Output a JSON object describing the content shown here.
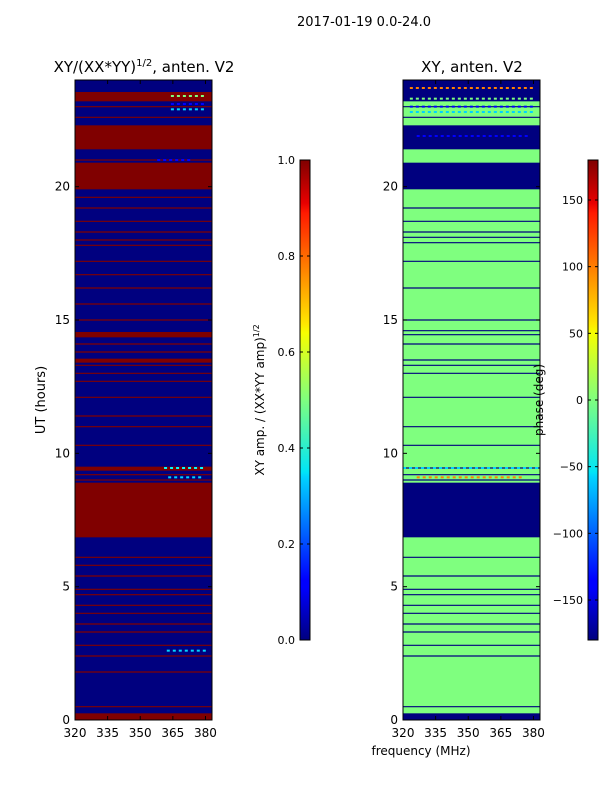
{
  "suptitle": "2017-01-19 0.0-24.0",
  "colors": {
    "red": "#800000",
    "navy": "#00007f",
    "green": "#7fff7f",
    "axis": "#000000"
  },
  "chart_data": [
    {
      "type": "heatmap",
      "title": "XY/(XX*YY)",
      "title_sup": "1/2",
      "title_suffix": ", anten. V2",
      "xlabel": "",
      "ylabel": "UT (hours)",
      "xlim": [
        320,
        383
      ],
      "ylim": [
        0,
        24
      ],
      "xticks": [
        320,
        335,
        350,
        365,
        380
      ],
      "yticks": [
        0,
        5,
        10,
        15,
        20
      ],
      "background_value": 0,
      "colormap": "jet",
      "bands": [
        {
          "y0": 0.0,
          "y1": 0.25,
          "value": 1
        },
        {
          "y0": 6.85,
          "y1": 8.9,
          "value": 1
        },
        {
          "y0": 9.35,
          "y1": 9.5,
          "value": 1
        },
        {
          "y0": 13.4,
          "y1": 13.55,
          "value": 1
        },
        {
          "y0": 14.35,
          "y1": 14.55,
          "value": 1
        },
        {
          "y0": 19.9,
          "y1": 20.9,
          "value": 1
        },
        {
          "y0": 21.4,
          "y1": 22.3,
          "value": 1
        },
        {
          "y0": 23.2,
          "y1": 23.55,
          "value": 1
        }
      ],
      "thin_lines": [
        0.5,
        1.8,
        2.4,
        2.8,
        3.3,
        3.6,
        4.0,
        4.3,
        4.7,
        4.9,
        5.4,
        5.8,
        6.1,
        9.0,
        9.2,
        10.3,
        11.0,
        11.4,
        12.1,
        12.7,
        13.0,
        13.3,
        13.8,
        14.1,
        15.0,
        15.6,
        16.2,
        16.7,
        17.2,
        17.8,
        18.0,
        18.3,
        18.7,
        19.2,
        19.6,
        21.0,
        22.6,
        23.0
      ]
    },
    {
      "type": "colorbar",
      "label": "XY amp. / (XX*YY amp)",
      "label_sup": "1/2",
      "range": [
        0.0,
        1.0
      ],
      "ticks": [
        "0.0",
        "0.2",
        "0.4",
        "0.6",
        "0.8",
        "1.0"
      ],
      "tick_values": [
        0.0,
        0.2,
        0.4,
        0.6,
        0.8,
        1.0
      ],
      "colormap": "jet"
    },
    {
      "type": "heatmap",
      "title": "XY, anten. V2",
      "xlabel": "frequency (MHz)",
      "ylabel": "",
      "xlim": [
        320,
        383
      ],
      "ylim": [
        0,
        24
      ],
      "xticks": [
        320,
        335,
        350,
        365,
        380
      ],
      "yticks": [
        0,
        5,
        10,
        15,
        20
      ],
      "background_value": 0,
      "colormap": "jet",
      "bands": [
        {
          "y0": 0.0,
          "y1": 0.25,
          "value": -180
        },
        {
          "y0": 6.85,
          "y1": 8.9,
          "value": -180
        },
        {
          "y0": 19.9,
          "y1": 20.9,
          "value": -180
        },
        {
          "y0": 21.4,
          "y1": 22.3,
          "value": -180
        },
        {
          "y0": 23.2,
          "y1": 24.0,
          "value": -180
        }
      ],
      "thin_lines": [
        0.5,
        2.4,
        2.8,
        3.3,
        3.6,
        4.0,
        4.3,
        4.7,
        4.9,
        5.4,
        6.1,
        9.0,
        9.2,
        9.45,
        10.3,
        11.0,
        12.1,
        13.0,
        13.3,
        13.5,
        14.1,
        14.45,
        14.6,
        15.0,
        16.2,
        17.2,
        17.9,
        18.1,
        18.3,
        18.7,
        19.2,
        21.9,
        22.6,
        23.0
      ]
    },
    {
      "type": "colorbar",
      "label": "phase (deg)",
      "range": [
        -180,
        180
      ],
      "ticks": [
        "−150",
        "−100",
        "−50",
        "0",
        "50",
        "100",
        "150"
      ],
      "tick_values": [
        -150,
        -100,
        -50,
        0,
        50,
        100,
        150
      ],
      "colormap": "jet"
    }
  ]
}
